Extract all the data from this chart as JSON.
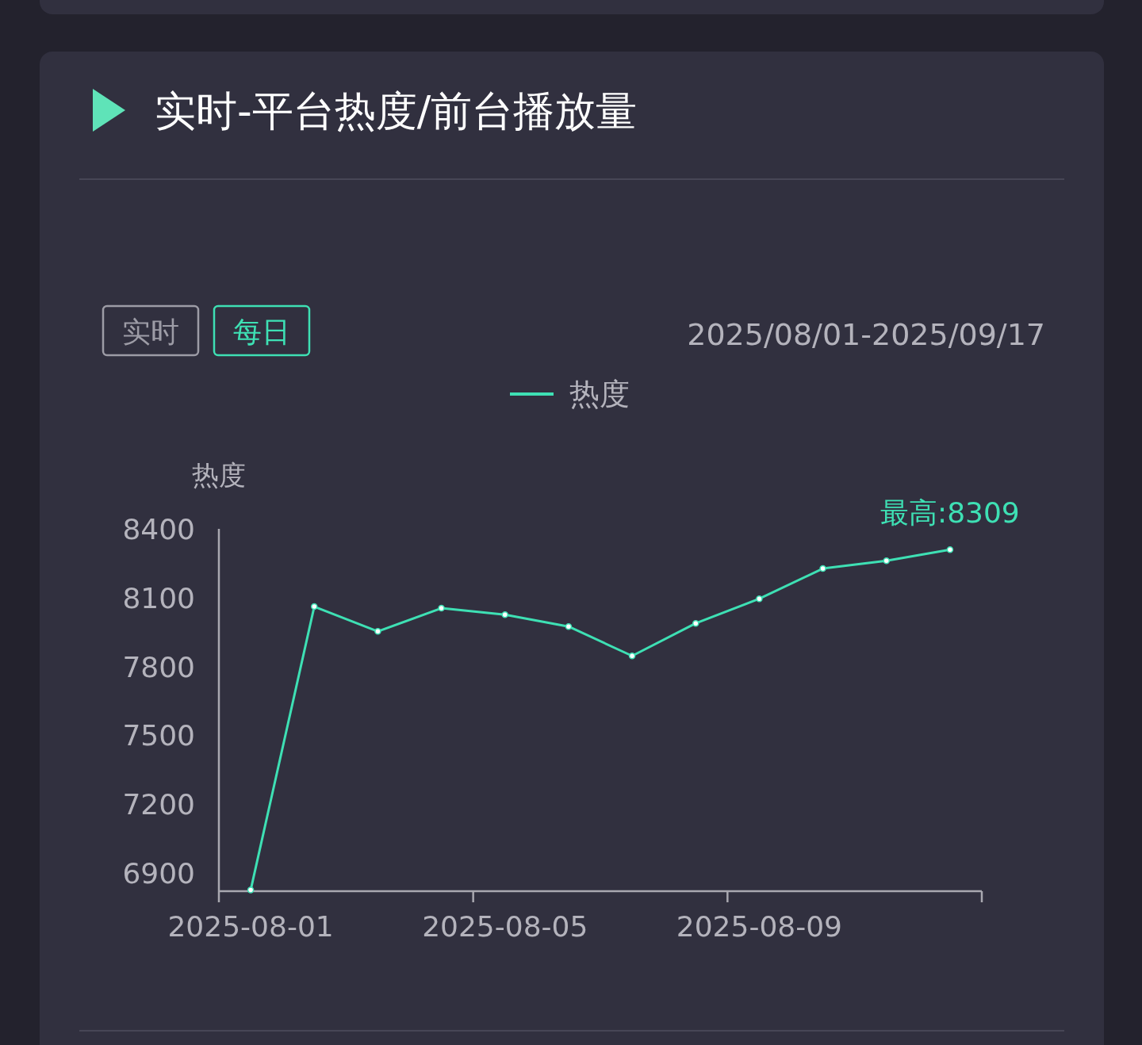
{
  "chart_data": {
    "type": "line",
    "title": "实时-平台热度/前台播放量",
    "subtitle": "2025/08/01-2025/09/17",
    "ylabel": "热度",
    "annotations": [
      "实时",
      "每日",
      {
        "text": "最高:8309",
        "y": 8309
      }
    ],
    "categories": [
      "2025-08-01",
      null,
      null,
      null,
      "2025-08-05",
      null,
      null,
      null,
      "2025-08-09",
      null,
      null,
      null
    ],
    "series": [
      {
        "name": "热度",
        "color": "#3ee0b4",
        "values": [
          6825,
          8061,
          7953,
          8054,
          8026,
          7974,
          7846,
          7988,
          8095,
          8227,
          8261,
          8309
        ]
      }
    ],
    "ylim": [
      6820,
      8400
    ],
    "yticks": [
      6900,
      7200,
      7500,
      7800,
      8100,
      8400
    ],
    "legend": "top",
    "marker": "circle"
  }
}
